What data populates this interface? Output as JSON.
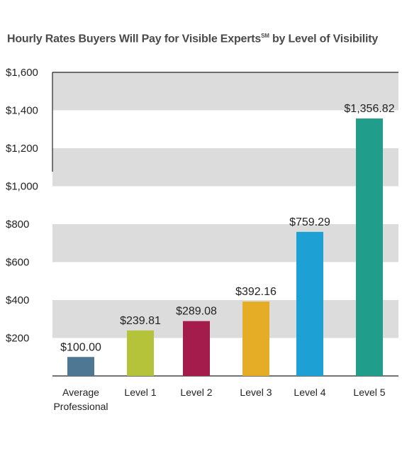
{
  "chart_data": {
    "type": "bar",
    "title": "Hourly Rates Buyers Will Pay for Visible Experts",
    "title_mark": "SM",
    "title_suffix": " by Level of Visibility",
    "categories": [
      [
        "Average",
        "Professional"
      ],
      [
        "Level 1"
      ],
      [
        "Level 2"
      ],
      [
        "Level 3"
      ],
      [
        "Level 4"
      ],
      [
        "Level 5"
      ]
    ],
    "values": [
      100.0,
      239.81,
      289.08,
      392.16,
      759.29,
      1356.82
    ],
    "data_labels": [
      "$100.00",
      "$239.81",
      "$289.08",
      "$392.16",
      "$759.29",
      "$1,356.82"
    ],
    "colors": [
      "#4e7793",
      "#b5c33b",
      "#a31c4b",
      "#e5ad25",
      "#1da1d4",
      "#219d8b"
    ],
    "ylim": [
      0,
      1600
    ],
    "yticks": [
      200,
      400,
      600,
      800,
      1000,
      1200,
      1400,
      1600
    ],
    "ytick_labels": [
      "$200",
      "$400",
      "$600",
      "$800",
      "$1,000",
      "$1,200",
      "$1,400",
      "$1,600"
    ],
    "band_color": "#dcdcdd",
    "grid": "alternating bands",
    "xlabel": "",
    "ylabel": ""
  }
}
